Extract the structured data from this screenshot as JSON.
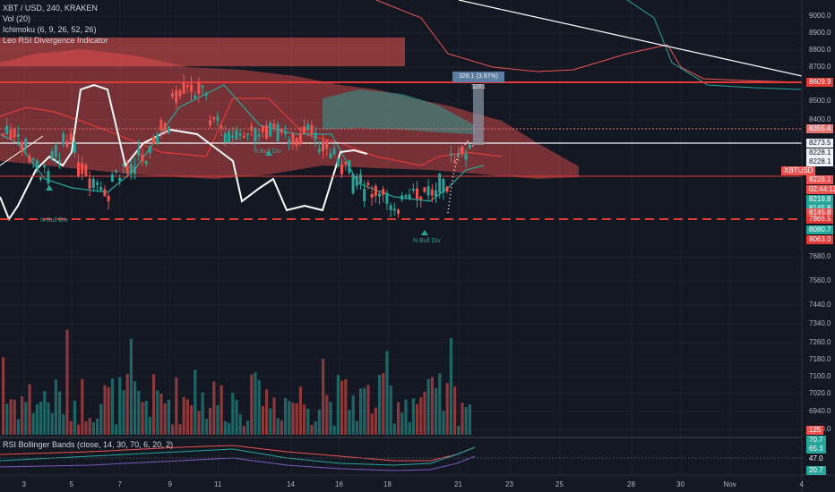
{
  "legend": {
    "symbol": "XBT / USD, 240, KRAKEN",
    "volume": "Vol (20)",
    "ichimoku": "Ichimoku (6, 9, 26, 52, 26)",
    "divergence": "Leo RSI Divergence Indicator"
  },
  "rsi_pane": {
    "title": "RSI Bollinger Bands (close, 14, 30, 70, 6, 20, 2)",
    "values": [
      {
        "text": "70.7",
        "bg": "#26a69a"
      },
      {
        "text": "65.3",
        "bg": "#26a69a"
      },
      {
        "text": "47.0",
        "bg": "#131722"
      },
      {
        "text": "20.7",
        "bg": "#26a69a"
      }
    ]
  },
  "price_axis_ticks": [
    "9000.0",
    "8900.0",
    "8800.0",
    "8700.0",
    "8500.0",
    "8400.0",
    "7680.0",
    "7560.0",
    "7440.0",
    "7340.0",
    "7260.0",
    "7180.0",
    "7100.0",
    "7020.0",
    "6940.0",
    "6860.0"
  ],
  "price_tags": [
    {
      "text": "8609.9",
      "bg": "#e53935"
    },
    {
      "text": "8355.4",
      "bg": "#e57373"
    },
    {
      "text": "8273.5",
      "bg": "#f0f3fa",
      "fg": "#131722"
    },
    {
      "text": "8228.1",
      "bg": "#f0f3fa",
      "fg": "#131722"
    },
    {
      "text": "8228.1",
      "bg": "#f0f3fa",
      "fg": "#131722"
    },
    {
      "text": "XBTUSD",
      "bg": "#ef5350"
    },
    {
      "text": "8228.1",
      "bg": "#ef5350"
    },
    {
      "text": "02:44:13",
      "bg": "#ef5350"
    },
    {
      "text": "8219.8",
      "bg": "#26a69a"
    },
    {
      "text": "8145.8",
      "bg": "#26a69a"
    },
    {
      "text": "8145.8",
      "bg": "#ef5350"
    },
    {
      "text": "7866.5",
      "bg": "#e53935"
    },
    {
      "text": "8080.7",
      "bg": "#26a69a"
    },
    {
      "text": "8063.0",
      "bg": "#e53935"
    },
    {
      "text": "125",
      "bg": "#ef5350"
    }
  ],
  "time_axis_ticks": [
    "3",
    "5",
    "7",
    "9",
    "11",
    "14",
    "16",
    "18",
    "21",
    "23",
    "25",
    "28",
    "30",
    "Nov",
    "4"
  ],
  "measure_tooltip": "328.1 (3.97%) 3281",
  "annotations": {
    "n_bull_div_1": "N Bull Div",
    "n_bull_div_2": "N Bull Div",
    "n_bull_div_3": "N Bull Div"
  },
  "colors": {
    "background": "#131722",
    "up": "#26a69a",
    "down": "#ef5350",
    "resistance": "#e53935",
    "grid": "#1e222d"
  }
}
